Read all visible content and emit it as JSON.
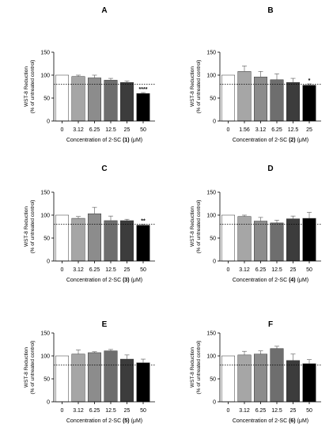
{
  "chart_data": [
    {
      "type": "bar",
      "panel": "A",
      "ylabel_line1": "WST-8 Reduction",
      "ylabel_line2": "(% of untreated control)",
      "xlabel_prefix": "Concentration of 2-SC ",
      "compound": "(1)",
      "xlabel_unit": " (μM)",
      "categories": [
        "0",
        "3.12",
        "6.25",
        "12.5",
        "25",
        "50"
      ],
      "values": [
        100,
        97,
        94,
        89,
        84,
        60
      ],
      "errors": [
        0,
        3,
        6,
        4,
        3,
        2
      ],
      "significance": [
        "",
        "",
        "",
        "",
        "",
        "****"
      ],
      "ylim": [
        0,
        150
      ],
      "yticks": [
        0,
        50,
        100,
        150
      ],
      "reference_line": 80
    },
    {
      "type": "bar",
      "panel": "B",
      "ylabel_line1": "WST-8 Reduction",
      "ylabel_line2": "(% of untreated control)",
      "xlabel_prefix": "Concentration of 2-SC ",
      "compound": "(2)",
      "xlabel_unit": " (μM)",
      "categories": [
        "0",
        "1.56",
        "3.12",
        "6.25",
        "12.5",
        "25"
      ],
      "values": [
        100,
        108,
        96,
        90,
        84,
        78
      ],
      "errors": [
        0,
        12,
        12,
        13,
        9,
        3
      ],
      "significance": [
        "",
        "",
        "",
        "",
        "",
        "*"
      ],
      "ylim": [
        0,
        150
      ],
      "yticks": [
        0,
        50,
        100,
        150
      ],
      "reference_line": 80
    },
    {
      "type": "bar",
      "panel": "C",
      "ylabel_line1": "WST-8 Reduction",
      "ylabel_line2": "(% of untreated control)",
      "xlabel_prefix": "Concentration of 2-SC ",
      "compound": "(3)",
      "xlabel_unit": " (μM)",
      "categories": [
        "0",
        "3.12",
        "6.25",
        "12.5",
        "25",
        "50"
      ],
      "values": [
        100,
        93,
        103,
        88,
        88,
        78
      ],
      "errors": [
        0,
        4,
        14,
        10,
        3,
        2
      ],
      "significance": [
        "",
        "",
        "",
        "",
        "",
        "**"
      ],
      "ylim": [
        0,
        150
      ],
      "yticks": [
        0,
        50,
        100,
        150
      ],
      "reference_line": 80
    },
    {
      "type": "bar",
      "panel": "D",
      "ylabel_line1": "WST-8 Reduction",
      "ylabel_line2": "(% of untreated control)",
      "xlabel_prefix": "Concentration of 2-SC ",
      "compound": "(4)",
      "xlabel_unit": " (μM)",
      "categories": [
        "0",
        "3.12",
        "6.25",
        "12.5",
        "25",
        "50"
      ],
      "values": [
        100,
        97,
        87,
        83,
        92,
        93
      ],
      "errors": [
        0,
        3,
        8,
        6,
        6,
        13
      ],
      "significance": [
        "",
        "",
        "",
        "",
        "",
        ""
      ],
      "ylim": [
        0,
        150
      ],
      "yticks": [
        0,
        50,
        100,
        150
      ],
      "reference_line": 80
    },
    {
      "type": "bar",
      "panel": "E",
      "ylabel_line1": "WST-8 Reduction",
      "ylabel_line2": "(% of untreated control)",
      "xlabel_prefix": "Concentration of 2-SC ",
      "compound": "(5)",
      "xlabel_unit": " (μM)",
      "categories": [
        "0",
        "3.12",
        "6.25",
        "12.5",
        "25",
        "50"
      ],
      "values": [
        100,
        104,
        107,
        111,
        93,
        85
      ],
      "errors": [
        0,
        9,
        2,
        3,
        9,
        8
      ],
      "significance": [
        "",
        "",
        "",
        "",
        "",
        ""
      ],
      "ylim": [
        0,
        150
      ],
      "yticks": [
        0,
        50,
        100,
        150
      ],
      "reference_line": 80
    },
    {
      "type": "bar",
      "panel": "F",
      "ylabel_line1": "WST-8 Reduction",
      "ylabel_line2": "(% of untreated control)",
      "xlabel_prefix": "Concentration of 2-SC ",
      "compound": "(6)",
      "xlabel_unit": " (μM)",
      "categories": [
        "0",
        "3.12",
        "6.25",
        "12.5",
        "25",
        "50"
      ],
      "values": [
        100,
        102,
        104,
        116,
        90,
        83
      ],
      "errors": [
        0,
        8,
        7,
        5,
        14,
        9
      ],
      "significance": [
        "",
        "",
        "",
        "",
        "",
        ""
      ],
      "ylim": [
        0,
        150
      ],
      "yticks": [
        0,
        50,
        100,
        150
      ],
      "reference_line": 80
    }
  ],
  "colors": {
    "bar_fills": [
      "#ffffff",
      "#a6a6a6",
      "#8c8c8c",
      "#6e6e6e",
      "#3c3c3c",
      "#000000"
    ],
    "axis": "#000000",
    "error_bar": "#555555"
  }
}
